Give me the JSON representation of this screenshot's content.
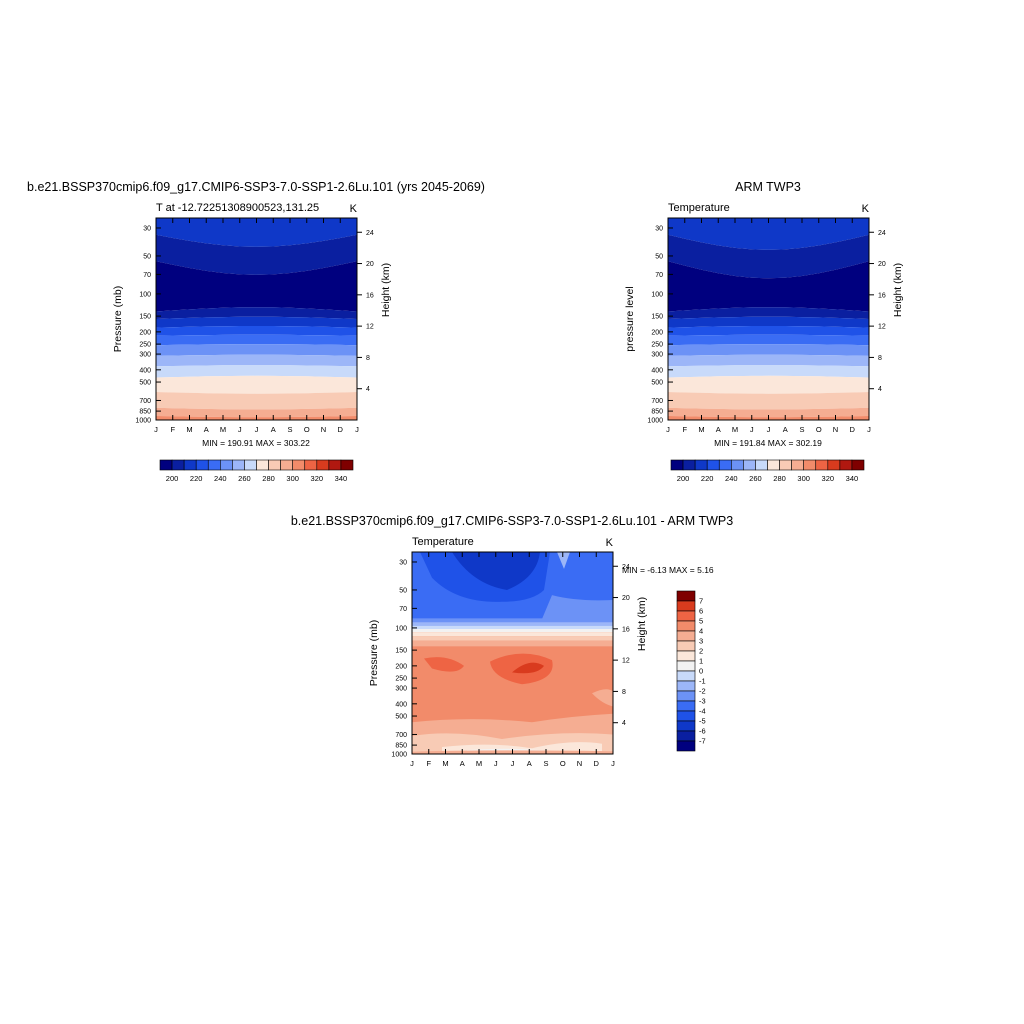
{
  "panels": {
    "model": {
      "title": "b.e21.BSSP370cmip6.f09_g17.CMIP6-SSP3-7.0-SSP1-2.6Lu.101 (yrs 2045-2069)",
      "left_string": "T at -12.72251308900523,131.25",
      "right_string": "K",
      "ylabel": "Pressure (mb)",
      "y2label": "Height (km)",
      "minmax": "MIN = 190.91 MAX = 303.22"
    },
    "obs": {
      "title": "ARM TWP3",
      "left_string": "Temperature",
      "right_string": "K",
      "ylabel": "pressure level",
      "y2label": "Height (km)",
      "minmax": "MIN = 191.84 MAX = 302.19"
    },
    "diff": {
      "title": "b.e21.BSSP370cmip6.f09_g17.CMIP6-SSP3-7.0-SSP1-2.6Lu.101 - ARM TWP3",
      "left_string": "Temperature",
      "right_string": "K",
      "ylabel": "Pressure (mb)",
      "y2label": "Height (km)",
      "minmax": "MIN =  -6.13 MAX =   5.16"
    }
  },
  "chart_data": [
    {
      "type": "heatmap",
      "title": "b.e21.BSSP370cmip6.f09_g17.CMIP6-SSP3-7.0-SSP1-2.6Lu.101 (yrs 2045-2069)",
      "xlabel": "",
      "ylabel": "Pressure (mb)",
      "y2label": "Height (km)",
      "x_ticks": [
        "J",
        "F",
        "M",
        "A",
        "M",
        "J",
        "J",
        "A",
        "S",
        "O",
        "N",
        "D",
        "J"
      ],
      "y_ticks": [
        30,
        50,
        70,
        100,
        150,
        200,
        250,
        300,
        400,
        500,
        700,
        850,
        1000
      ],
      "y2_ticks": [
        4,
        8,
        12,
        16,
        20,
        24
      ],
      "ylim": [
        1000,
        25
      ],
      "y_scale": "log",
      "min": 190.91,
      "max": 303.22,
      "levels": [
        200,
        210,
        220,
        230,
        240,
        250,
        260,
        270,
        280,
        290,
        300,
        310,
        320,
        330,
        340
      ],
      "colorbar_labels": [
        "200",
        "220",
        "240",
        "260",
        "280",
        "300",
        "320",
        "340"
      ]
    },
    {
      "type": "heatmap",
      "title": "ARM TWP3",
      "xlabel": "",
      "ylabel": "pressure level",
      "y2label": "Height (km)",
      "x_ticks": [
        "J",
        "F",
        "M",
        "A",
        "M",
        "J",
        "J",
        "A",
        "S",
        "O",
        "N",
        "D",
        "J"
      ],
      "y_ticks": [
        30,
        50,
        70,
        100,
        150,
        200,
        250,
        300,
        400,
        500,
        700,
        850,
        1000
      ],
      "y2_ticks": [
        4,
        8,
        12,
        16,
        20,
        24
      ],
      "ylim": [
        1000,
        25
      ],
      "y_scale": "log",
      "min": 191.84,
      "max": 302.19,
      "levels": [
        200,
        210,
        220,
        230,
        240,
        250,
        260,
        270,
        280,
        290,
        300,
        310,
        320,
        330,
        340
      ],
      "colorbar_labels": [
        "200",
        "220",
        "240",
        "260",
        "280",
        "300",
        "320",
        "340"
      ]
    },
    {
      "type": "heatmap",
      "title": "b.e21.BSSP370cmip6.f09_g17.CMIP6-SSP3-7.0-SSP1-2.6Lu.101 - ARM TWP3",
      "xlabel": "",
      "ylabel": "Pressure (mb)",
      "y2label": "Height (km)",
      "x_ticks": [
        "J",
        "F",
        "M",
        "A",
        "M",
        "J",
        "J",
        "A",
        "S",
        "O",
        "N",
        "D",
        "J"
      ],
      "y_ticks": [
        30,
        50,
        70,
        100,
        150,
        200,
        250,
        300,
        400,
        500,
        700,
        850,
        1000
      ],
      "y2_ticks": [
        4,
        8,
        12,
        16,
        20,
        24
      ],
      "ylim": [
        1000,
        25
      ],
      "y_scale": "log",
      "min": -6.13,
      "max": 5.16,
      "levels": [
        -7,
        -6,
        -5,
        -4,
        -3,
        -2,
        -1,
        0,
        1,
        2,
        3,
        4,
        5,
        6,
        7
      ],
      "colorbar_labels": [
        "7",
        "6",
        "5",
        "4",
        "3",
        "2",
        "1",
        "0",
        "-1",
        "-2",
        "-3",
        "-4",
        "-5",
        "-6",
        "-7"
      ]
    }
  ],
  "palettes": {
    "temperature": [
      "#00007f",
      "#0a1fa0",
      "#0f38c8",
      "#1f52e8",
      "#3a6cf4",
      "#6c92f6",
      "#9cb6f8",
      "#c8dafa",
      "#fbe7da",
      "#f8cbb5",
      "#f5ad92",
      "#f28b6a",
      "#ee6444",
      "#d93b1e",
      "#b01810",
      "#7f0000"
    ],
    "difference": [
      "#00007f",
      "#0a1fa0",
      "#0f38c8",
      "#1f52e8",
      "#3a6cf4",
      "#6c92f6",
      "#9cb6f8",
      "#c8dafa",
      "#f2f2f2",
      "#fbe7da",
      "#f8cbb5",
      "#f5ad92",
      "#f28b6a",
      "#ee6444",
      "#d93b1e",
      "#7f0000"
    ]
  }
}
